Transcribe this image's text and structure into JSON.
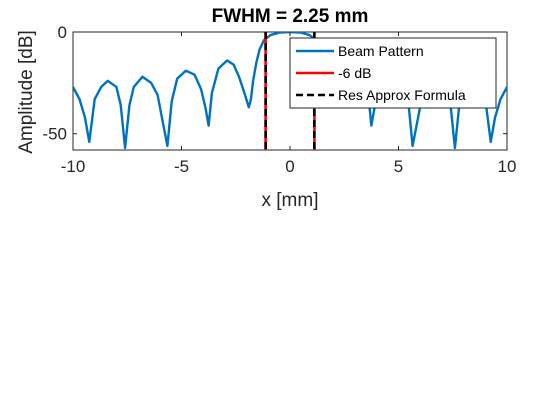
{
  "chart_data": {
    "type": "line",
    "title": "FWHM = 2.25 mm",
    "xlabel": "x [mm]",
    "ylabel": "Amplitude [dB]",
    "xlim": [
      -10,
      10
    ],
    "ylim": [
      -58,
      0
    ],
    "xticks": [
      -10,
      -5,
      0,
      5,
      10
    ],
    "yticks": [
      0,
      -50
    ],
    "grid": false,
    "legend_position": "top-right",
    "series": [
      {
        "name": "Beam Pattern",
        "color": "#0072BD",
        "style": "solid",
        "x": [
          -10,
          -9.7,
          -9.45,
          -9.25,
          -9.0,
          -8.7,
          -8.4,
          -8.0,
          -7.8,
          -7.6,
          -7.4,
          -7.2,
          -6.8,
          -6.4,
          -6.1,
          -5.85,
          -5.65,
          -5.45,
          -5.2,
          -4.8,
          -4.4,
          -4.1,
          -3.9,
          -3.75,
          -3.6,
          -3.3,
          -2.9,
          -2.6,
          -2.35,
          -2.1,
          -1.9,
          -1.8,
          -1.7,
          -1.55,
          -1.4,
          -1.2,
          -0.9,
          -0.5,
          0,
          0.5,
          0.9,
          1.2,
          1.4,
          1.55,
          1.7,
          1.8,
          1.9,
          2.1,
          2.35,
          2.6,
          2.9,
          3.3,
          3.6,
          3.75,
          3.9,
          4.1,
          4.4,
          4.8,
          5.2,
          5.45,
          5.65,
          5.85,
          6.1,
          6.4,
          6.8,
          7.2,
          7.4,
          7.6,
          7.8,
          8.0,
          8.4,
          8.7,
          9.0,
          9.25,
          9.45,
          9.7,
          10
        ],
        "y": [
          -27,
          -33,
          -42,
          -54,
          -33,
          -27,
          -24,
          -27,
          -36,
          -57,
          -36,
          -27,
          -22,
          -25,
          -31,
          -45,
          -56,
          -34,
          -23,
          -19,
          -21,
          -28,
          -37,
          -46,
          -30,
          -18,
          -14,
          -16,
          -22,
          -30,
          -37,
          -33,
          -24,
          -15,
          -8.5,
          -4,
          -1.5,
          -0.3,
          0,
          -0.3,
          -1.5,
          -4,
          -8.5,
          -15,
          -24,
          -33,
          -37,
          -30,
          -22,
          -16,
          -14,
          -18,
          -30,
          -46,
          -37,
          -28,
          -21,
          -19,
          -23,
          -34,
          -56,
          -45,
          -31,
          -25,
          -22,
          -27,
          -36,
          -57,
          -36,
          -27,
          -24,
          -27,
          -33,
          -54,
          -42,
          -33,
          -27
        ]
      },
      {
        "name": "-6 dB",
        "color": "#FF0000",
        "style": "solid",
        "x_values": [
          -1.125,
          1.125
        ]
      },
      {
        "name": "Res Approx Formula",
        "color": "#000000",
        "style": "dashed",
        "x_values": [
          -1.12,
          1.12
        ]
      }
    ]
  }
}
